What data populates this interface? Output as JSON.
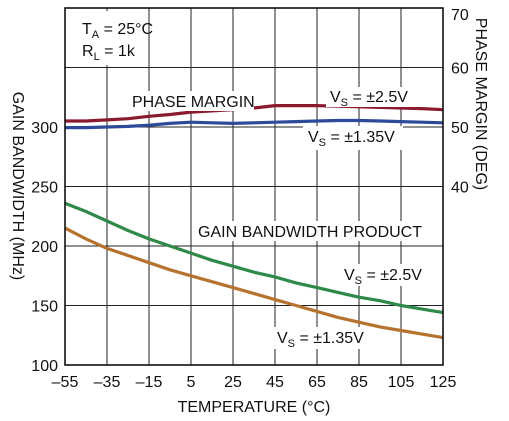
{
  "chart_data": {
    "type": "line",
    "x": [
      -55,
      -45,
      -35,
      -25,
      -15,
      -5,
      5,
      15,
      25,
      35,
      45,
      55,
      65,
      75,
      85,
      95,
      105,
      115,
      125
    ],
    "xlabel": "TEMPERATURE (°C)",
    "ylabel_left": "GAIN BANDWIDTH (MHz)",
    "ylabel_right": "PHASE MARGIN (DEG)",
    "x_ticks": [
      "–55",
      "–35",
      "–15",
      "5",
      "25",
      "45",
      "65",
      "85",
      "105",
      "125"
    ],
    "x_tick_values": [
      -55,
      -35,
      -15,
      5,
      25,
      45,
      65,
      85,
      105,
      125
    ],
    "xlim": [
      -55,
      125
    ],
    "y_left_ticks": [
      "100",
      "150",
      "200",
      "250",
      "300"
    ],
    "y_left_tick_values": [
      100,
      150,
      200,
      250,
      300
    ],
    "ylim_left": [
      100,
      400
    ],
    "y_right_ticks": [
      "40",
      "50",
      "60",
      "70"
    ],
    "y_right_tick_values": [
      40,
      50,
      60,
      70
    ],
    "ylim_right": [
      10,
      70
    ],
    "grid": true,
    "conditions": {
      "ta_main": "T",
      "ta_sub": "A",
      "ta_rest": " = 25°C",
      "rl_main": "R",
      "rl_sub": "L",
      "rl_rest": " = 1k"
    },
    "annotations": {
      "phase_margin": "PHASE MARGIN",
      "gbw_product": "GAIN BANDWIDTH PRODUCT",
      "vs_main": "V",
      "vs_sub": "S",
      "vs_25": " = ±2.5V",
      "vs_135": " = ±1.35V"
    },
    "series": [
      {
        "group": "phase",
        "axis": "right",
        "color": "#8b1a2e",
        "values": [
          51.0,
          51.0,
          51.2,
          51.4,
          51.8,
          52.1,
          52.5,
          52.7,
          52.9,
          53.2,
          53.6,
          53.6,
          53.6,
          53.5,
          53.4,
          53.3,
          53.2,
          53.1,
          52.9
        ]
      },
      {
        "group": "phase",
        "axis": "right",
        "color": "#2e4a9a",
        "values": [
          49.9,
          49.9,
          50.0,
          50.1,
          50.3,
          50.6,
          50.8,
          50.7,
          50.6,
          50.7,
          50.8,
          50.9,
          51.0,
          51.1,
          51.1,
          51.0,
          50.9,
          50.8,
          50.7
        ]
      },
      {
        "group": "gbw",
        "axis": "left",
        "color": "#2f8a4a",
        "values": [
          236,
          229,
          221,
          213,
          206,
          200,
          194,
          188,
          183,
          178,
          174,
          169,
          165,
          161,
          157,
          154,
          150,
          147,
          144
        ]
      },
      {
        "group": "gbw",
        "axis": "left",
        "color": "#b5732f",
        "values": [
          215,
          206,
          198,
          192,
          186,
          180,
          175,
          170,
          165,
          160,
          155,
          150,
          145,
          140,
          136,
          132,
          129,
          126,
          123
        ]
      }
    ]
  }
}
